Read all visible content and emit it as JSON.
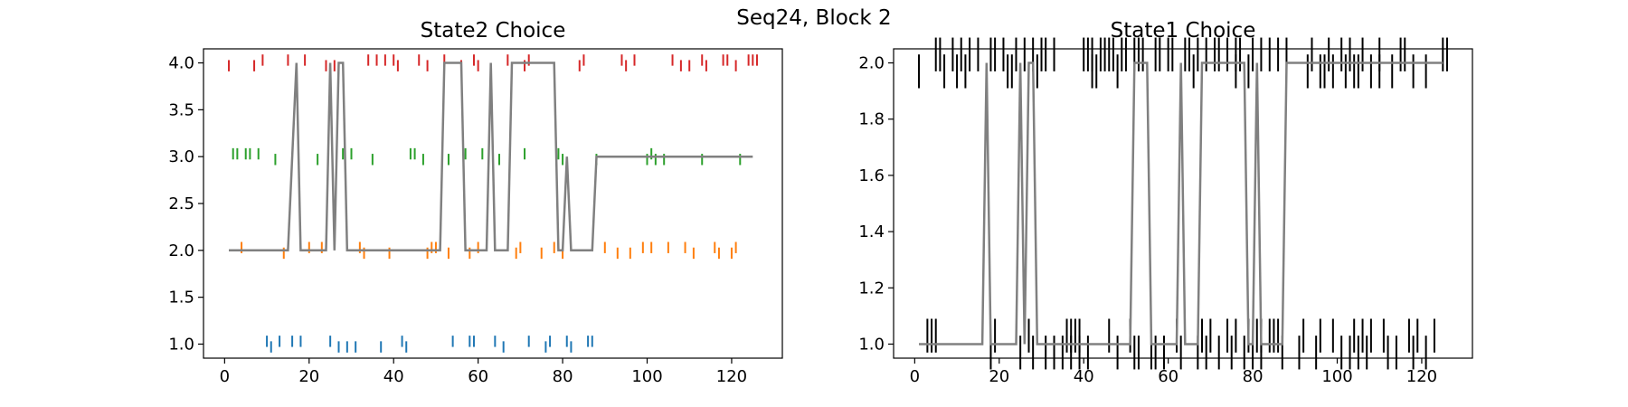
{
  "figure": {
    "suptitle": "Seq24, Block 2"
  },
  "colors": {
    "line": "#808080",
    "s1": "#1f77b4",
    "s2": "#ff7f0e",
    "s3": "#2ca02c",
    "s4": "#d62728",
    "black": "#000000"
  },
  "chart_data": [
    {
      "type": "line",
      "title": "State2 Choice",
      "xlim": [
        -5,
        132
      ],
      "ylim": [
        0.85,
        4.15
      ],
      "xticks": [
        0,
        20,
        40,
        60,
        80,
        100,
        120
      ],
      "yticks": [
        1.0,
        1.5,
        2.0,
        2.5,
        3.0,
        3.5,
        4.0
      ],
      "ytick_labels": [
        "1.0",
        "1.5",
        "2.0",
        "2.5",
        "3.0",
        "3.5",
        "4.0"
      ],
      "line": {
        "x": [
          1,
          15,
          17,
          18,
          24,
          25,
          26,
          27,
          28,
          29,
          51,
          52,
          56,
          57,
          62,
          63,
          64,
          67,
          68,
          78,
          79,
          80,
          81,
          82,
          87,
          88,
          125
        ],
        "y": [
          2,
          2,
          4,
          2,
          2,
          4,
          2,
          4,
          4,
          2,
          2,
          4,
          4,
          2,
          2,
          4,
          2,
          2,
          4,
          4,
          2,
          2,
          3,
          2,
          2,
          3,
          3
        ]
      },
      "series": [
        {
          "name": "",
          "color_key": "s4",
          "up": [
            9,
            15,
            19,
            34,
            36,
            38,
            40,
            46,
            52,
            59,
            67,
            72,
            85,
            94,
            97,
            106,
            113,
            118,
            119,
            124,
            125,
            126
          ],
          "down": [
            1,
            7,
            24,
            26,
            41,
            48,
            56,
            60,
            71,
            84,
            95,
            108,
            110,
            114,
            121
          ]
        },
        {
          "name": "",
          "color_key": "s3",
          "up": [
            2,
            3,
            5,
            6,
            8,
            28,
            30,
            44,
            45,
            57,
            61,
            71,
            79,
            101
          ],
          "down": [
            12,
            22,
            35,
            47,
            53,
            65,
            80,
            88,
            100,
            102,
            104,
            113,
            122
          ]
        },
        {
          "name": "",
          "color_key": "s2",
          "up": [
            4,
            20,
            23,
            32,
            49,
            50,
            60,
            70,
            78,
            90,
            99,
            101,
            105,
            109,
            116,
            121
          ],
          "down": [
            14,
            33,
            39,
            48,
            53,
            58,
            69,
            75,
            80,
            93,
            96,
            111,
            117,
            120
          ]
        },
        {
          "name": "",
          "color_key": "s1",
          "up": [
            10,
            13,
            16,
            18,
            25,
            42,
            54,
            58,
            59,
            64,
            72,
            77,
            81,
            86,
            87
          ],
          "down": [
            11,
            27,
            29,
            31,
            37,
            43,
            66,
            76,
            82
          ]
        }
      ],
      "series_levels": [
        4,
        3,
        2,
        1
      ]
    },
    {
      "type": "line",
      "title": "State1 Choice",
      "xlim": [
        -5,
        132
      ],
      "ylim": [
        0.95,
        2.05
      ],
      "xticks": [
        0,
        20,
        40,
        60,
        80,
        100,
        120
      ],
      "yticks": [
        1.0,
        1.2,
        1.4,
        1.6,
        1.8,
        2.0
      ],
      "ytick_labels": [
        "1.0",
        "1.2",
        "1.4",
        "1.6",
        "1.8",
        "2.0"
      ],
      "line": {
        "x": [
          1,
          16,
          17,
          18,
          24,
          25,
          26,
          27,
          28,
          29,
          51,
          52,
          55,
          56,
          62,
          63,
          64,
          67,
          68,
          78,
          79,
          80,
          81,
          82,
          87,
          88,
          125
        ],
        "y": [
          1,
          1,
          2,
          1,
          1,
          2,
          1,
          2,
          2,
          1,
          1,
          2,
          2,
          1,
          1,
          2,
          1,
          1,
          2,
          2,
          1,
          1,
          2,
          1,
          1,
          2,
          2
        ]
      },
      "series": [
        {
          "name": "",
          "color_key": "black",
          "up": [
            5,
            6,
            9,
            11,
            13,
            15,
            18,
            19,
            21,
            24,
            26,
            28,
            30,
            31,
            33,
            40,
            41,
            42,
            44,
            45,
            46,
            47,
            49,
            50,
            52,
            53,
            54,
            57,
            58,
            60,
            61,
            64,
            65,
            67,
            69,
            71,
            72,
            74,
            76,
            77,
            80,
            82,
            84,
            86,
            88,
            94,
            98,
            101,
            103,
            106,
            110,
            115,
            116,
            125,
            126
          ],
          "down": [
            1,
            7,
            10,
            12,
            22,
            23,
            29,
            42,
            43,
            48,
            66,
            76,
            79,
            93,
            96,
            97,
            99,
            102,
            104,
            105,
            108,
            110,
            113,
            118,
            121
          ]
        },
        {
          "name": "",
          "color_key": "black",
          "up": [
            3,
            4,
            5,
            19,
            27,
            36,
            37,
            38,
            39,
            46,
            51,
            62,
            68,
            70,
            74,
            76,
            79,
            81,
            82,
            84,
            85,
            86,
            92,
            96,
            99,
            104,
            106,
            108,
            111,
            117,
            119,
            123
          ],
          "down": [
            18,
            25,
            28,
            31,
            33,
            35,
            37,
            39,
            41,
            48,
            52,
            53,
            56,
            57,
            59,
            63,
            67,
            69,
            72,
            75,
            78,
            80,
            82,
            87,
            91,
            95,
            101,
            103,
            105,
            107,
            112,
            114,
            118,
            121
          ]
        }
      ],
      "series_levels": [
        2,
        1
      ]
    }
  ]
}
